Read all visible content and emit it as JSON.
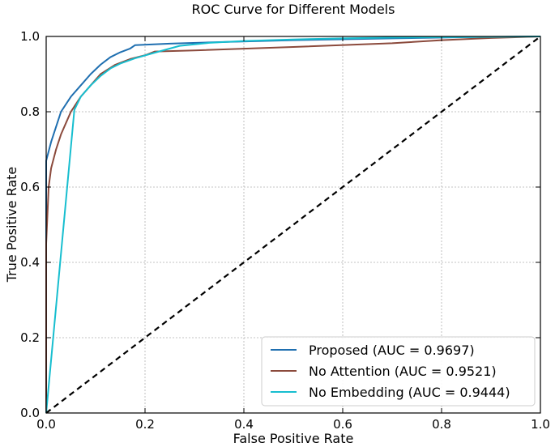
{
  "chart_data": {
    "type": "line",
    "title": "ROC Curve for Different Models",
    "xlabel": "False Positive Rate",
    "ylabel": "True Positive Rate",
    "xlim": [
      0.0,
      1.0
    ],
    "ylim": [
      0.0,
      1.0
    ],
    "xticks": [
      "0.0",
      "0.2",
      "0.4",
      "0.6",
      "0.8",
      "1.0"
    ],
    "yticks": [
      "0.0",
      "0.2",
      "0.4",
      "0.6",
      "0.8",
      "1.0"
    ],
    "grid": true,
    "legend_position": "bottom-right",
    "series": [
      {
        "name": "Proposed (AUC = 0.9697)",
        "color": "#1f6fb0",
        "x": [
          0.0,
          0.0,
          0.01,
          0.02,
          0.03,
          0.05,
          0.07,
          0.09,
          0.11,
          0.13,
          0.15,
          0.17,
          0.18,
          0.25,
          0.35,
          0.5,
          0.7,
          0.85,
          1.0
        ],
        "y": [
          0.0,
          0.67,
          0.72,
          0.76,
          0.8,
          0.84,
          0.87,
          0.9,
          0.925,
          0.945,
          0.958,
          0.968,
          0.977,
          0.981,
          0.985,
          0.99,
          0.995,
          0.998,
          1.0
        ]
      },
      {
        "name": "No Attention (AUC = 0.9521)",
        "color": "#8b4a3c",
        "x": [
          0.0,
          0.0,
          0.005,
          0.01,
          0.02,
          0.03,
          0.04,
          0.05,
          0.07,
          0.09,
          0.11,
          0.14,
          0.17,
          0.2,
          0.22,
          0.3,
          0.5,
          0.7,
          0.8,
          0.9,
          1.0
        ],
        "y": [
          0.0,
          0.45,
          0.6,
          0.65,
          0.7,
          0.74,
          0.77,
          0.8,
          0.84,
          0.87,
          0.9,
          0.925,
          0.94,
          0.95,
          0.96,
          0.963,
          0.972,
          0.982,
          0.99,
          0.996,
          1.0
        ]
      },
      {
        "name": "No Embedding (AUC = 0.9444)",
        "color": "#17becf",
        "x": [
          0.0,
          0.057,
          0.07,
          0.09,
          0.11,
          0.13,
          0.15,
          0.18,
          0.22,
          0.27,
          0.33,
          0.4,
          0.5,
          0.6,
          0.7,
          0.8,
          0.9,
          1.0
        ],
        "y": [
          0.0,
          0.805,
          0.84,
          0.87,
          0.895,
          0.915,
          0.928,
          0.942,
          0.957,
          0.975,
          0.983,
          0.988,
          0.992,
          0.995,
          0.997,
          0.998,
          0.999,
          1.0
        ]
      },
      {
        "name": "",
        "color": "#000000",
        "dashed": true,
        "x": [
          0.0,
          1.0
        ],
        "y": [
          0.0,
          1.0
        ]
      }
    ]
  }
}
